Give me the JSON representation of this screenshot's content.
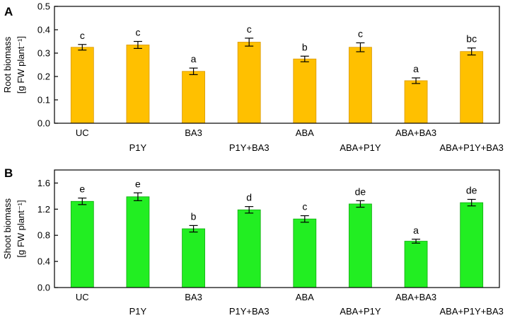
{
  "chart_data": [
    {
      "type": "bar",
      "panel_label": "A",
      "ylabel_line1": "Root biomass",
      "ylabel_line2": "[g FW plant⁻¹]",
      "ylim": [
        0,
        0.5
      ],
      "yticks": [
        0.0,
        0.1,
        0.2,
        0.3,
        0.4,
        0.5
      ],
      "ytick_labels": [
        "0.0",
        "0.1",
        "0.2",
        "0.3",
        "0.4",
        "0.5"
      ],
      "categories": [
        "UC",
        "P1Y",
        "BA3",
        "P1Y+BA3",
        "ABA",
        "ABA+P1Y",
        "ABA+BA3",
        "ABA+P1Y+BA3"
      ],
      "values": [
        0.325,
        0.335,
        0.222,
        0.347,
        0.275,
        0.325,
        0.182,
        0.307
      ],
      "errors": [
        0.012,
        0.015,
        0.014,
        0.017,
        0.012,
        0.019,
        0.012,
        0.015
      ],
      "significance": [
        "c",
        "c",
        "a",
        "c",
        "b",
        "c",
        "a",
        "bc"
      ],
      "bar_color": "#FFC000",
      "bar_edge": "#d99800"
    },
    {
      "type": "bar",
      "panel_label": "B",
      "ylabel_line1": "Shoot biomass",
      "ylabel_line2": "[g FW plant⁻¹]",
      "ylim": [
        0,
        1.8
      ],
      "yticks": [
        0.0,
        0.4,
        0.8,
        1.2,
        1.6
      ],
      "ytick_labels": [
        "0.0",
        "0.4",
        "0.8",
        "1.2",
        "1.6"
      ],
      "categories": [
        "UC",
        "P1Y",
        "BA3",
        "P1Y+BA3",
        "ABA",
        "ABA+P1Y",
        "ABA+BA3",
        "ABA+P1Y+BA3"
      ],
      "values": [
        1.32,
        1.39,
        0.9,
        1.19,
        1.05,
        1.28,
        0.71,
        1.3
      ],
      "errors": [
        0.05,
        0.06,
        0.05,
        0.05,
        0.05,
        0.05,
        0.03,
        0.05
      ],
      "significance": [
        "e",
        "e",
        "b",
        "d",
        "c",
        "de",
        "a",
        "de"
      ],
      "bar_color": "#22EE22",
      "bar_edge": "#11aa11"
    }
  ]
}
